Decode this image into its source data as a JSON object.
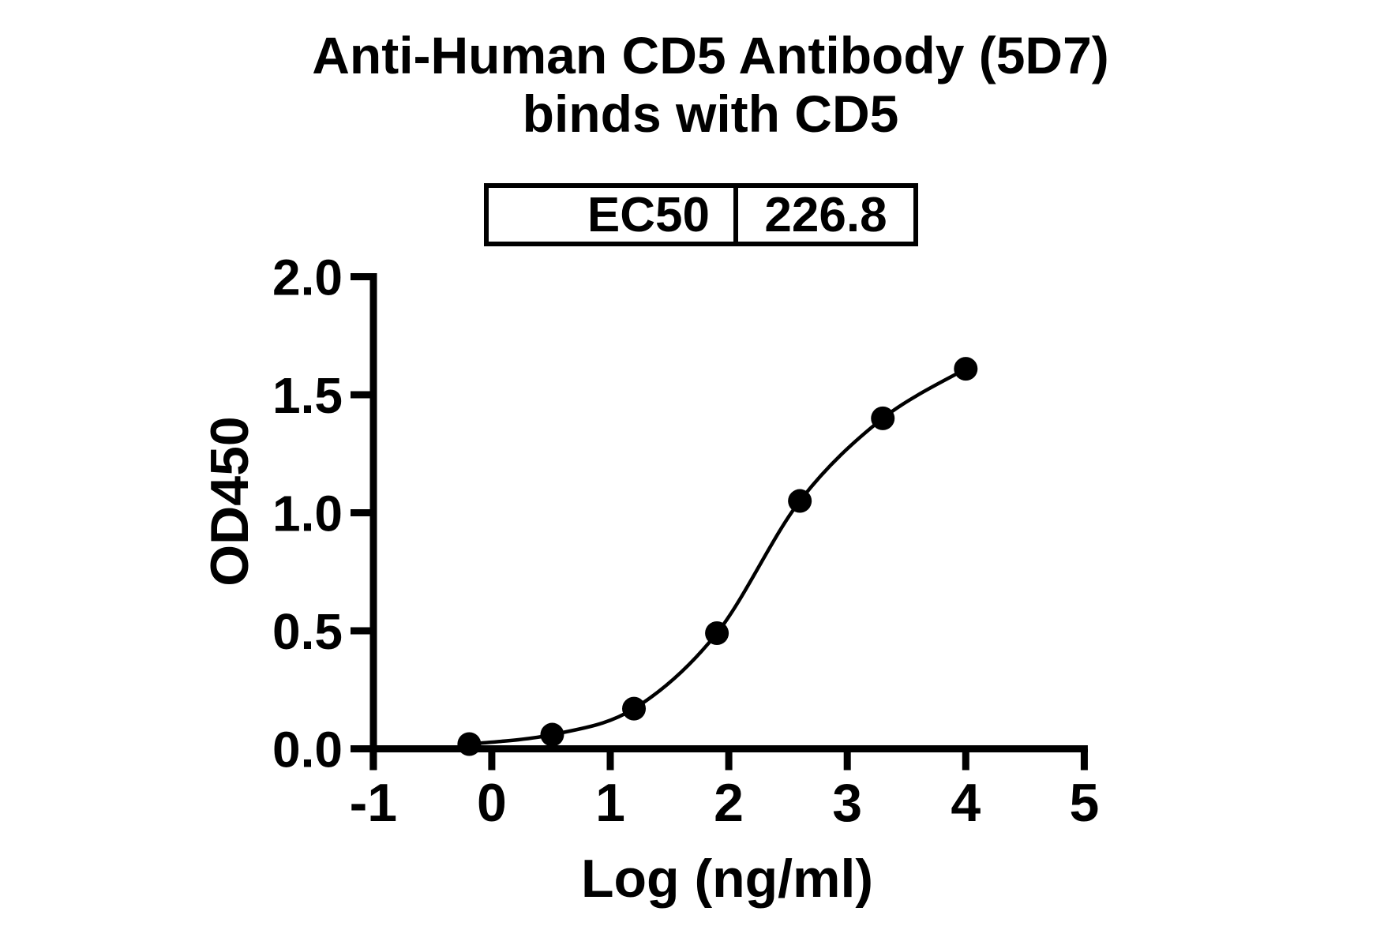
{
  "page": {
    "background": "#ffffff",
    "text_color": "#000000"
  },
  "chart_data": {
    "type": "scatter",
    "title_lines": [
      "Anti-Human CD5 Antibody (5D7)",
      "binds with CD5"
    ],
    "stats_table": {
      "label": "EC50",
      "value": "226.8"
    },
    "xlabel": "Log (ng/ml)",
    "ylabel": "OD450",
    "xlim": [
      -1,
      5
    ],
    "ylim": [
      0,
      2
    ],
    "x_tick_values": [
      -1,
      0,
      1,
      2,
      3,
      4,
      5
    ],
    "x_tick_labels": [
      "-1",
      "0",
      "1",
      "2",
      "3",
      "4",
      "5"
    ],
    "y_tick_values": [
      0,
      0.5,
      1,
      1.5,
      2
    ],
    "y_tick_labels": [
      "0.0",
      "0.5",
      "1.0",
      "1.5",
      "2.0"
    ],
    "grid": false,
    "legend": "none",
    "axis_color": "#000000",
    "series": [
      {
        "name": "Anti-Human CD5 Antibody (5D7)",
        "marker": "filled-circle",
        "color": "#000000",
        "curve": "sigmoid-fit-through-points",
        "points": [
          {
            "x": -0.19,
            "y": 0.02
          },
          {
            "x": 0.51,
            "y": 0.06
          },
          {
            "x": 1.2,
            "y": 0.17
          },
          {
            "x": 1.9,
            "y": 0.49
          },
          {
            "x": 2.6,
            "y": 1.05
          },
          {
            "x": 3.3,
            "y": 1.4
          },
          {
            "x": 4.0,
            "y": 1.61
          }
        ]
      }
    ]
  }
}
